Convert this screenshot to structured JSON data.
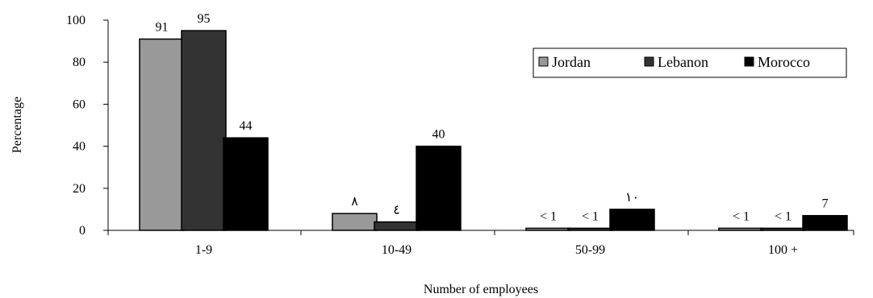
{
  "chart_data": {
    "type": "bar",
    "title": "",
    "xlabel": "Number of employees",
    "ylabel": "Percentage",
    "ylim": [
      0,
      100
    ],
    "yticks": [
      0,
      20,
      40,
      60,
      80,
      100
    ],
    "categories": [
      "1-9",
      "10-49",
      "50-99",
      "100  +"
    ],
    "series": [
      {
        "name": "Jordan",
        "color": "#999999",
        "values": [
          91,
          8,
          1,
          1
        ],
        "labels": [
          "91",
          "٨",
          "< 1",
          "< 1"
        ]
      },
      {
        "name": "Lebanon",
        "color": "#333333",
        "values": [
          95,
          4,
          1,
          1
        ],
        "labels": [
          "95",
          "٤",
          "< 1",
          "< 1"
        ]
      },
      {
        "name": "Morocco",
        "color": "#000000",
        "values": [
          44,
          40,
          10,
          7
        ],
        "labels": [
          "44",
          "40",
          "١٠",
          "7"
        ]
      }
    ],
    "legend": {
      "position": "top-right"
    },
    "grid": false
  }
}
